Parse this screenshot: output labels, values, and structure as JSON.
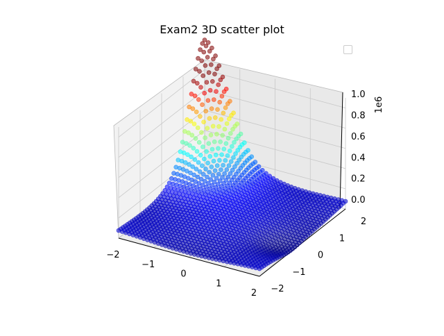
{
  "chart_data": {
    "type": "scatter3d",
    "title": "Exam2 3D scatter plot",
    "z_offset_label": "1e6",
    "x_ticks": [
      "−2",
      "−1",
      "0",
      "1",
      "2"
    ],
    "y_ticks": [
      "−2",
      "−1",
      "0",
      "1",
      "2"
    ],
    "z_ticks": [
      "0.0",
      "0.2",
      "0.4",
      "0.6",
      "0.8",
      "1.0"
    ],
    "xlim": [
      -2,
      2
    ],
    "ylim": [
      -2,
      2
    ],
    "zlim": [
      0,
      1.0
    ],
    "colormap": "jet",
    "surface_description": "points on a 40x40 grid over x,y in [-2,2]; z rises to about 1.0e6 near x=-2, y=2 and is near 0 elsewhere",
    "legend": {
      "location": "upper right",
      "entries": []
    }
  }
}
